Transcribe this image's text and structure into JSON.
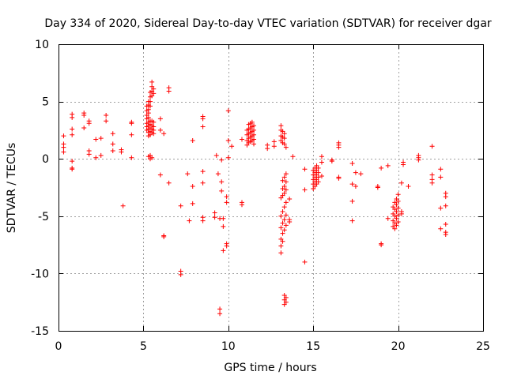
{
  "chart_data": {
    "type": "scatter",
    "title": "Day 334 of 2020, Sidereal Day-to-day VTEC variation (SDTVAR) for receiver dgar",
    "xlabel": "GPS time / hours",
    "ylabel": "SDTVAR / TECUs",
    "xlim": [
      0,
      25
    ],
    "ylim": [
      -15,
      10
    ],
    "x_ticks": [
      0,
      5,
      10,
      15,
      20,
      25
    ],
    "y_ticks": [
      -15,
      -10,
      -5,
      0,
      5,
      10
    ],
    "x_tick_labels": [
      "0",
      "5",
      "10",
      "15",
      "20",
      "25"
    ],
    "y_tick_labels": [
      "-15",
      "-10",
      "-5",
      "0",
      "5",
      "10"
    ],
    "grid": true,
    "marker": "plus",
    "color": "#ff0000",
    "series": [
      {
        "name": "SDTVAR",
        "points": [
          [
            0.3,
            2.0
          ],
          [
            0.3,
            1.3
          ],
          [
            0.3,
            1.0
          ],
          [
            0.3,
            0.6
          ],
          [
            0.8,
            3.9
          ],
          [
            0.8,
            3.6
          ],
          [
            0.8,
            2.6
          ],
          [
            0.8,
            2.1
          ],
          [
            0.8,
            -0.2
          ],
          [
            0.8,
            -0.8
          ],
          [
            0.8,
            -0.9
          ],
          [
            1.5,
            4.0
          ],
          [
            1.5,
            3.8
          ],
          [
            1.5,
            2.7
          ],
          [
            1.8,
            3.3
          ],
          [
            1.8,
            3.1
          ],
          [
            1.8,
            0.7
          ],
          [
            1.8,
            0.4
          ],
          [
            2.2,
            1.7
          ],
          [
            2.2,
            0.1
          ],
          [
            2.5,
            1.8
          ],
          [
            2.5,
            0.3
          ],
          [
            2.8,
            3.8
          ],
          [
            2.8,
            3.3
          ],
          [
            3.2,
            2.2
          ],
          [
            3.2,
            1.3
          ],
          [
            3.2,
            0.7
          ],
          [
            3.7,
            0.8
          ],
          [
            3.7,
            0.6
          ],
          [
            3.8,
            -4.1
          ],
          [
            4.3,
            3.2
          ],
          [
            4.3,
            3.1
          ],
          [
            4.3,
            2.1
          ],
          [
            4.3,
            0.1
          ],
          [
            5.2,
            4.6
          ],
          [
            5.2,
            4.2
          ],
          [
            5.2,
            3.8
          ],
          [
            5.2,
            3.5
          ],
          [
            5.2,
            3.1
          ],
          [
            5.2,
            2.8
          ],
          [
            5.2,
            2.5
          ],
          [
            5.3,
            5.0
          ],
          [
            5.3,
            4.7
          ],
          [
            5.3,
            4.3
          ],
          [
            5.3,
            4.0
          ],
          [
            5.3,
            3.6
          ],
          [
            5.3,
            3.2
          ],
          [
            5.3,
            2.9
          ],
          [
            5.3,
            2.6
          ],
          [
            5.3,
            2.3
          ],
          [
            5.3,
            2.0
          ],
          [
            5.3,
            0.2
          ],
          [
            5.4,
            5.8
          ],
          [
            5.4,
            5.4
          ],
          [
            5.4,
            5.0
          ],
          [
            5.4,
            4.6
          ],
          [
            5.4,
            3.3
          ],
          [
            5.4,
            3.0
          ],
          [
            5.4,
            2.7
          ],
          [
            5.4,
            2.4
          ],
          [
            5.4,
            2.1
          ],
          [
            5.4,
            0.3
          ],
          [
            5.4,
            0.0
          ],
          [
            5.5,
            6.7
          ],
          [
            5.5,
            6.3
          ],
          [
            5.5,
            5.9
          ],
          [
            5.5,
            5.5
          ],
          [
            5.5,
            3.3
          ],
          [
            5.5,
            2.9
          ],
          [
            5.5,
            2.6
          ],
          [
            5.5,
            2.3
          ],
          [
            5.5,
            0.1
          ],
          [
            5.6,
            6.1
          ],
          [
            5.6,
            5.7
          ],
          [
            5.6,
            3.2
          ],
          [
            5.6,
            2.8
          ],
          [
            5.6,
            2.5
          ],
          [
            5.6,
            2.2
          ],
          [
            6.0,
            3.5
          ],
          [
            6.0,
            2.5
          ],
          [
            6.0,
            -1.4
          ],
          [
            6.2,
            2.2
          ],
          [
            6.2,
            -6.7
          ],
          [
            6.2,
            -6.8
          ],
          [
            6.5,
            6.2
          ],
          [
            6.5,
            5.9
          ],
          [
            6.5,
            -2.1
          ],
          [
            7.2,
            -4.1
          ],
          [
            7.2,
            -9.8
          ],
          [
            7.2,
            -10.1
          ],
          [
            7.6,
            -1.3
          ],
          [
            7.7,
            -5.4
          ],
          [
            7.9,
            1.6
          ],
          [
            7.9,
            -2.4
          ],
          [
            7.9,
            -3.9
          ],
          [
            8.5,
            3.7
          ],
          [
            8.5,
            3.5
          ],
          [
            8.5,
            2.8
          ],
          [
            8.5,
            -1.1
          ],
          [
            8.5,
            -2.1
          ],
          [
            8.5,
            -5.1
          ],
          [
            8.5,
            -5.4
          ],
          [
            9.2,
            -4.7
          ],
          [
            9.2,
            -5.1
          ],
          [
            9.3,
            0.3
          ],
          [
            9.4,
            -1.3
          ],
          [
            9.5,
            -5.2
          ],
          [
            9.5,
            -13.1
          ],
          [
            9.5,
            -13.5
          ],
          [
            9.6,
            -0.1
          ],
          [
            9.6,
            -2.0
          ],
          [
            9.6,
            -2.8
          ],
          [
            9.7,
            -5.2
          ],
          [
            9.7,
            -5.9
          ],
          [
            9.7,
            -8.0
          ],
          [
            9.9,
            -7.4
          ],
          [
            9.9,
            -7.6
          ],
          [
            9.9,
            -3.3
          ],
          [
            9.9,
            -3.8
          ],
          [
            10.0,
            4.2
          ],
          [
            10.0,
            1.6
          ],
          [
            10.0,
            0.1
          ],
          [
            10.2,
            1.1
          ],
          [
            10.8,
            1.7
          ],
          [
            10.8,
            -3.8
          ],
          [
            10.8,
            -4.0
          ],
          [
            11.1,
            1.2
          ],
          [
            11.1,
            1.6
          ],
          [
            11.1,
            2.1
          ],
          [
            11.1,
            2.5
          ],
          [
            11.2,
            1.4
          ],
          [
            11.2,
            1.8
          ],
          [
            11.2,
            2.2
          ],
          [
            11.2,
            2.6
          ],
          [
            11.2,
            3.0
          ],
          [
            11.3,
            1.5
          ],
          [
            11.3,
            1.9
          ],
          [
            11.3,
            2.3
          ],
          [
            11.3,
            2.7
          ],
          [
            11.3,
            3.1
          ],
          [
            11.4,
            1.6
          ],
          [
            11.4,
            2.0
          ],
          [
            11.4,
            2.4
          ],
          [
            11.4,
            2.8
          ],
          [
            11.4,
            3.2
          ],
          [
            11.5,
            1.3
          ],
          [
            11.5,
            1.7
          ],
          [
            11.5,
            2.1
          ],
          [
            11.5,
            2.5
          ],
          [
            11.5,
            2.9
          ],
          [
            12.3,
            1.2
          ],
          [
            12.3,
            0.9
          ],
          [
            12.7,
            1.5
          ],
          [
            12.7,
            1.1
          ],
          [
            13.1,
            2.9
          ],
          [
            13.1,
            2.5
          ],
          [
            13.1,
            2.0
          ],
          [
            13.1,
            1.6
          ],
          [
            13.1,
            -3.4
          ],
          [
            13.1,
            -5.0
          ],
          [
            13.1,
            -6.0
          ],
          [
            13.1,
            -7.0
          ],
          [
            13.1,
            -7.6
          ],
          [
            13.1,
            -8.2
          ],
          [
            13.2,
            2.4
          ],
          [
            13.2,
            1.9
          ],
          [
            13.2,
            1.4
          ],
          [
            13.2,
            -1.9
          ],
          [
            13.2,
            -2.6
          ],
          [
            13.2,
            -3.2
          ],
          [
            13.2,
            -4.6
          ],
          [
            13.2,
            -5.6
          ],
          [
            13.2,
            -6.5
          ],
          [
            13.2,
            -7.2
          ],
          [
            13.3,
            2.2
          ],
          [
            13.3,
            1.8
          ],
          [
            13.3,
            1.3
          ],
          [
            13.3,
            -1.6
          ],
          [
            13.3,
            -2.4
          ],
          [
            13.3,
            -3.0
          ],
          [
            13.3,
            -4.2
          ],
          [
            13.3,
            -5.3
          ],
          [
            13.3,
            -6.2
          ],
          [
            13.3,
            -11.9
          ],
          [
            13.3,
            -12.3
          ],
          [
            13.3,
            -12.7
          ],
          [
            13.4,
            1.0
          ],
          [
            13.4,
            -1.3
          ],
          [
            13.4,
            -2.0
          ],
          [
            13.4,
            -2.7
          ],
          [
            13.4,
            -3.8
          ],
          [
            13.4,
            -4.9
          ],
          [
            13.4,
            -5.8
          ],
          [
            13.4,
            -12.1
          ],
          [
            13.4,
            -12.5
          ],
          [
            13.6,
            -5.3
          ],
          [
            13.6,
            -5.5
          ],
          [
            13.6,
            -3.5
          ],
          [
            13.8,
            0.2
          ],
          [
            14.5,
            -0.9
          ],
          [
            14.5,
            -2.7
          ],
          [
            14.5,
            -9.0
          ],
          [
            15.0,
            -2.6
          ],
          [
            15.0,
            -2.2
          ],
          [
            15.0,
            -1.8
          ],
          [
            15.0,
            -1.4
          ],
          [
            15.0,
            -1.0
          ],
          [
            15.1,
            -2.4
          ],
          [
            15.1,
            -2.0
          ],
          [
            15.1,
            -1.6
          ],
          [
            15.1,
            -1.2
          ],
          [
            15.1,
            -0.8
          ],
          [
            15.2,
            -2.2
          ],
          [
            15.2,
            -1.8
          ],
          [
            15.2,
            -1.4
          ],
          [
            15.2,
            -1.0
          ],
          [
            15.2,
            -0.6
          ],
          [
            15.3,
            -2.0
          ],
          [
            15.3,
            -1.6
          ],
          [
            15.3,
            -1.2
          ],
          [
            15.3,
            -0.8
          ],
          [
            15.5,
            -1.5
          ],
          [
            15.5,
            -0.3
          ],
          [
            15.5,
            0.2
          ],
          [
            16.1,
            -0.1
          ],
          [
            16.1,
            -0.2
          ],
          [
            16.5,
            1.4
          ],
          [
            16.5,
            1.2
          ],
          [
            16.5,
            1.0
          ],
          [
            16.5,
            -1.6
          ],
          [
            16.5,
            -1.7
          ],
          [
            17.3,
            -0.4
          ],
          [
            17.3,
            -2.2
          ],
          [
            17.3,
            -3.7
          ],
          [
            17.3,
            -5.4
          ],
          [
            17.5,
            -1.2
          ],
          [
            17.5,
            -2.4
          ],
          [
            17.8,
            -1.3
          ],
          [
            18.8,
            -2.4
          ],
          [
            18.8,
            -2.5
          ],
          [
            19.0,
            -0.8
          ],
          [
            19.0,
            -7.4
          ],
          [
            19.0,
            -7.5
          ],
          [
            19.4,
            -0.6
          ],
          [
            19.4,
            -5.2
          ],
          [
            19.7,
            -5.9
          ],
          [
            19.7,
            -5.4
          ],
          [
            19.7,
            -4.8
          ],
          [
            19.7,
            -4.2
          ],
          [
            19.8,
            -6.1
          ],
          [
            19.8,
            -5.6
          ],
          [
            19.8,
            -5.0
          ],
          [
            19.8,
            -4.4
          ],
          [
            19.8,
            -3.8
          ],
          [
            19.9,
            -5.8
          ],
          [
            19.9,
            -5.2
          ],
          [
            19.9,
            -4.6
          ],
          [
            19.9,
            -4.0
          ],
          [
            19.9,
            -3.5
          ],
          [
            20.0,
            -5.5
          ],
          [
            20.0,
            -4.9
          ],
          [
            20.0,
            -4.3
          ],
          [
            20.0,
            -3.7
          ],
          [
            20.0,
            -3.1
          ],
          [
            20.2,
            -2.1
          ],
          [
            20.2,
            -4.6
          ],
          [
            20.2,
            -4.8
          ],
          [
            20.3,
            -0.3
          ],
          [
            20.3,
            -0.5
          ],
          [
            20.6,
            -2.4
          ],
          [
            21.2,
            0.3
          ],
          [
            21.2,
            0.1
          ],
          [
            21.2,
            -0.1
          ],
          [
            22.0,
            1.1
          ],
          [
            22.0,
            -1.4
          ],
          [
            22.0,
            -1.8
          ],
          [
            22.0,
            -2.1
          ],
          [
            22.5,
            -0.9
          ],
          [
            22.5,
            -1.6
          ],
          [
            22.5,
            -4.3
          ],
          [
            22.5,
            -6.1
          ],
          [
            22.8,
            -3.0
          ],
          [
            22.8,
            -3.3
          ],
          [
            22.8,
            -4.1
          ],
          [
            22.8,
            -5.7
          ],
          [
            22.8,
            -6.4
          ],
          [
            22.8,
            -6.6
          ]
        ]
      }
    ]
  }
}
